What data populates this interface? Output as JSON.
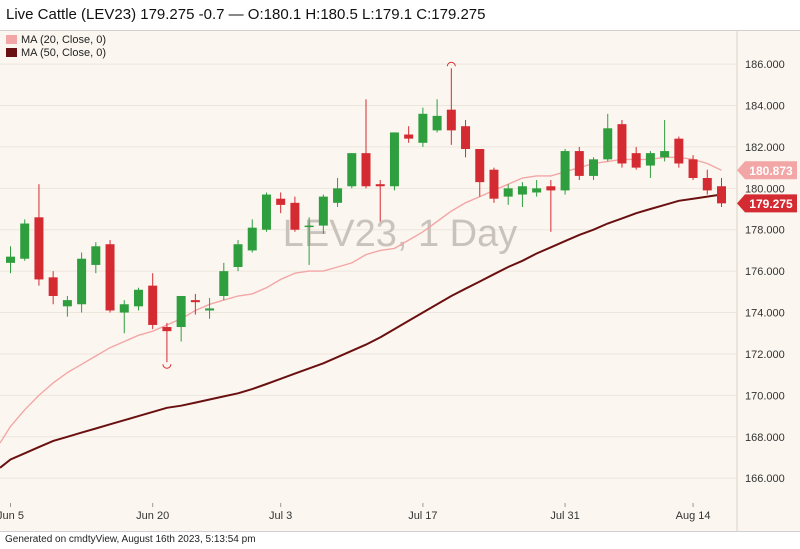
{
  "header": {
    "title": "Live Cattle (LEV23) 179.275 -0.7 — O:180.1 H:180.5 L:179.1 C:179.275"
  },
  "footer": {
    "text": "Generated on cmdtyView, August 16th 2023, 5:13:54 pm"
  },
  "colors": {
    "background": "#fbf7f0",
    "up": "#2e9e3e",
    "down": "#d42a32",
    "ma20": "#f3a6a6",
    "ma50": "#6b1010",
    "watermark": "#c9c3bc",
    "grid": "#ece6dc"
  },
  "chart_data": {
    "type": "candlestick",
    "watermark": "LEV23, 1 Day",
    "ylim": [
      164.8,
      187.6
    ],
    "y_ticks": [
      "166.000",
      "168.000",
      "170.000",
      "172.000",
      "174.000",
      "176.000",
      "178.000",
      "180.000",
      "182.000",
      "184.000",
      "186.000"
    ],
    "x_ticks": [
      "Jun 5",
      "Jun 20",
      "Jul 3",
      "Jul 17",
      "Jul 31",
      "Aug 14"
    ],
    "legend": [
      {
        "label": "MA (20, Close, 0)",
        "color": "#f3a6a6"
      },
      {
        "label": "MA (50, Close, 0)",
        "color": "#6b1010"
      }
    ],
    "price_labels": [
      {
        "value": "180.873",
        "series": "MA (20, Close, 0)"
      },
      {
        "value": "179.275",
        "series": "last close"
      }
    ],
    "candles": [
      {
        "o": 176.4,
        "h": 177.2,
        "l": 175.9,
        "c": 176.7
      },
      {
        "o": 176.6,
        "h": 178.5,
        "l": 176.5,
        "c": 178.3
      },
      {
        "o": 178.6,
        "h": 180.2,
        "l": 175.3,
        "c": 175.6
      },
      {
        "o": 175.7,
        "h": 176.0,
        "l": 174.4,
        "c": 174.8
      },
      {
        "o": 174.3,
        "h": 174.8,
        "l": 173.8,
        "c": 174.6
      },
      {
        "o": 174.4,
        "h": 176.9,
        "l": 174.0,
        "c": 176.6
      },
      {
        "o": 176.3,
        "h": 177.4,
        "l": 175.9,
        "c": 177.2
      },
      {
        "o": 177.3,
        "h": 177.5,
        "l": 174.0,
        "c": 174.1
      },
      {
        "o": 174.0,
        "h": 174.6,
        "l": 173.0,
        "c": 174.4
      },
      {
        "o": 174.3,
        "h": 175.2,
        "l": 174.1,
        "c": 175.1
      },
      {
        "o": 175.3,
        "h": 175.9,
        "l": 173.2,
        "c": 173.4
      },
      {
        "o": 173.3,
        "h": 173.5,
        "l": 171.6,
        "c": 173.1
      },
      {
        "o": 173.3,
        "h": 174.8,
        "l": 172.6,
        "c": 174.8
      },
      {
        "o": 174.6,
        "h": 174.9,
        "l": 173.9,
        "c": 174.5
      },
      {
        "o": 174.1,
        "h": 174.7,
        "l": 173.7,
        "c": 174.2
      },
      {
        "o": 174.8,
        "h": 176.4,
        "l": 174.6,
        "c": 176.0
      },
      {
        "o": 176.2,
        "h": 177.5,
        "l": 176.0,
        "c": 177.3
      },
      {
        "o": 177.0,
        "h": 178.5,
        "l": 176.9,
        "c": 178.1
      },
      {
        "o": 178.0,
        "h": 179.8,
        "l": 177.9,
        "c": 179.7
      },
      {
        "o": 179.5,
        "h": 179.8,
        "l": 178.8,
        "c": 179.2
      },
      {
        "o": 179.3,
        "h": 179.6,
        "l": 177.9,
        "c": 178.0
      },
      {
        "o": 178.2,
        "h": 178.6,
        "l": 176.3,
        "c": 178.2
      },
      {
        "o": 178.2,
        "h": 179.7,
        "l": 177.8,
        "c": 179.6
      },
      {
        "o": 179.3,
        "h": 180.5,
        "l": 179.1,
        "c": 180.0
      },
      {
        "o": 180.1,
        "h": 181.7,
        "l": 180.0,
        "c": 181.7
      },
      {
        "o": 181.7,
        "h": 184.3,
        "l": 180.0,
        "c": 180.1
      },
      {
        "o": 180.2,
        "h": 180.4,
        "l": 178.4,
        "c": 180.1
      },
      {
        "o": 180.1,
        "h": 182.7,
        "l": 179.9,
        "c": 182.7
      },
      {
        "o": 182.6,
        "h": 183.0,
        "l": 182.2,
        "c": 182.4
      },
      {
        "o": 182.2,
        "h": 183.9,
        "l": 182.0,
        "c": 183.6
      },
      {
        "o": 182.8,
        "h": 184.3,
        "l": 182.7,
        "c": 183.5
      },
      {
        "o": 183.8,
        "h": 185.8,
        "l": 182.1,
        "c": 182.8
      },
      {
        "o": 183.0,
        "h": 183.3,
        "l": 181.5,
        "c": 181.9
      },
      {
        "o": 181.9,
        "h": 181.9,
        "l": 179.6,
        "c": 180.3
      },
      {
        "o": 180.9,
        "h": 181.0,
        "l": 179.3,
        "c": 179.5
      },
      {
        "o": 179.6,
        "h": 180.2,
        "l": 179.2,
        "c": 180.0
      },
      {
        "o": 179.7,
        "h": 180.3,
        "l": 179.1,
        "c": 180.1
      },
      {
        "o": 179.8,
        "h": 180.4,
        "l": 179.6,
        "c": 180.0
      },
      {
        "o": 180.1,
        "h": 180.4,
        "l": 177.9,
        "c": 179.9
      },
      {
        "o": 179.9,
        "h": 181.9,
        "l": 179.7,
        "c": 181.8
      },
      {
        "o": 181.8,
        "h": 182.0,
        "l": 180.4,
        "c": 180.6
      },
      {
        "o": 180.6,
        "h": 181.5,
        "l": 180.4,
        "c": 181.4
      },
      {
        "o": 181.4,
        "h": 183.6,
        "l": 181.3,
        "c": 182.9
      },
      {
        "o": 183.1,
        "h": 183.3,
        "l": 181.0,
        "c": 181.2
      },
      {
        "o": 181.7,
        "h": 182.0,
        "l": 180.9,
        "c": 181.0
      },
      {
        "o": 181.1,
        "h": 181.8,
        "l": 180.5,
        "c": 181.7
      },
      {
        "o": 181.5,
        "h": 183.3,
        "l": 181.3,
        "c": 181.8
      },
      {
        "o": 182.4,
        "h": 182.5,
        "l": 181.0,
        "c": 181.2
      },
      {
        "o": 181.4,
        "h": 181.6,
        "l": 180.4,
        "c": 180.5
      },
      {
        "o": 180.5,
        "h": 180.9,
        "l": 179.7,
        "c": 179.9
      },
      {
        "o": 180.1,
        "h": 180.5,
        "l": 179.1,
        "c": 179.275
      }
    ],
    "ma20": [
      168.5,
      169.3,
      170.0,
      170.6,
      171.1,
      171.5,
      171.9,
      172.3,
      172.6,
      172.9,
      173.1,
      173.4,
      173.7,
      174.1,
      174.4,
      174.6,
      174.8,
      174.9,
      175.2,
      175.6,
      175.9,
      176.0,
      176.0,
      176.2,
      176.4,
      176.8,
      177.0,
      177.1,
      177.5,
      177.9,
      178.4,
      178.9,
      179.3,
      179.6,
      179.9,
      180.2,
      180.5,
      180.6,
      180.6,
      180.8,
      181.0,
      181.2,
      181.3,
      181.4,
      181.4,
      181.4,
      181.5,
      181.5,
      181.4,
      181.2,
      180.873
    ],
    "ma50": [
      166.9,
      167.2,
      167.5,
      167.8,
      168.0,
      168.2,
      168.4,
      168.6,
      168.8,
      169.0,
      169.2,
      169.4,
      169.5,
      169.65,
      169.8,
      169.95,
      170.1,
      170.3,
      170.55,
      170.8,
      171.05,
      171.3,
      171.55,
      171.85,
      172.15,
      172.45,
      172.8,
      173.2,
      173.6,
      174.0,
      174.4,
      174.8,
      175.15,
      175.5,
      175.85,
      176.2,
      176.5,
      176.85,
      177.15,
      177.45,
      177.75,
      178.0,
      178.3,
      178.55,
      178.8,
      179.0,
      179.2,
      179.4,
      179.5,
      179.6,
      179.7
    ]
  }
}
